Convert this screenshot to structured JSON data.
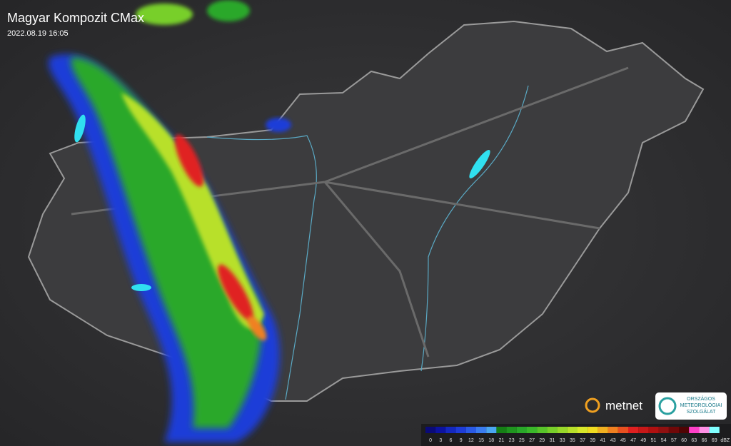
{
  "header": {
    "title": "Magyar Kompozit CMax",
    "timestamp": "2022.08.19 16:05"
  },
  "legend": {
    "unit": "dBZ",
    "stops": [
      {
        "value": 0,
        "color": "#0a0a78"
      },
      {
        "value": 3,
        "color": "#0c12a0"
      },
      {
        "value": 6,
        "color": "#1428c0"
      },
      {
        "value": 9,
        "color": "#1e3cd8"
      },
      {
        "value": 12,
        "color": "#2a5ae6"
      },
      {
        "value": 15,
        "color": "#3a7cf0"
      },
      {
        "value": 18,
        "color": "#4aa6f2"
      },
      {
        "value": 21,
        "color": "#157f15"
      },
      {
        "value": 23,
        "color": "#1f951f"
      },
      {
        "value": 25,
        "color": "#29a829"
      },
      {
        "value": 27,
        "color": "#3ab82a"
      },
      {
        "value": 29,
        "color": "#58c42a"
      },
      {
        "value": 31,
        "color": "#78cf2a"
      },
      {
        "value": 33,
        "color": "#98d82a"
      },
      {
        "value": 35,
        "color": "#b8e02a"
      },
      {
        "value": 37,
        "color": "#d8e82a"
      },
      {
        "value": 39,
        "color": "#f0dc20"
      },
      {
        "value": 41,
        "color": "#f0b020"
      },
      {
        "value": 43,
        "color": "#f08020"
      },
      {
        "value": 45,
        "color": "#e85020"
      },
      {
        "value": 47,
        "color": "#e02020"
      },
      {
        "value": 49,
        "color": "#c81818"
      },
      {
        "value": 51,
        "color": "#b01010"
      },
      {
        "value": 54,
        "color": "#901010"
      },
      {
        "value": 57,
        "color": "#700808"
      },
      {
        "value": 60,
        "color": "#500404"
      },
      {
        "value": 63,
        "color": "#ff40c8"
      },
      {
        "value": 66,
        "color": "#ff90e6"
      },
      {
        "value": 69,
        "color": "#80ffff"
      }
    ]
  },
  "logos": {
    "metnet": "metnet",
    "omsz": [
      "ORSZÁGOS",
      "METEOROLÓGIAI",
      "SZOLGÁLAT"
    ]
  }
}
